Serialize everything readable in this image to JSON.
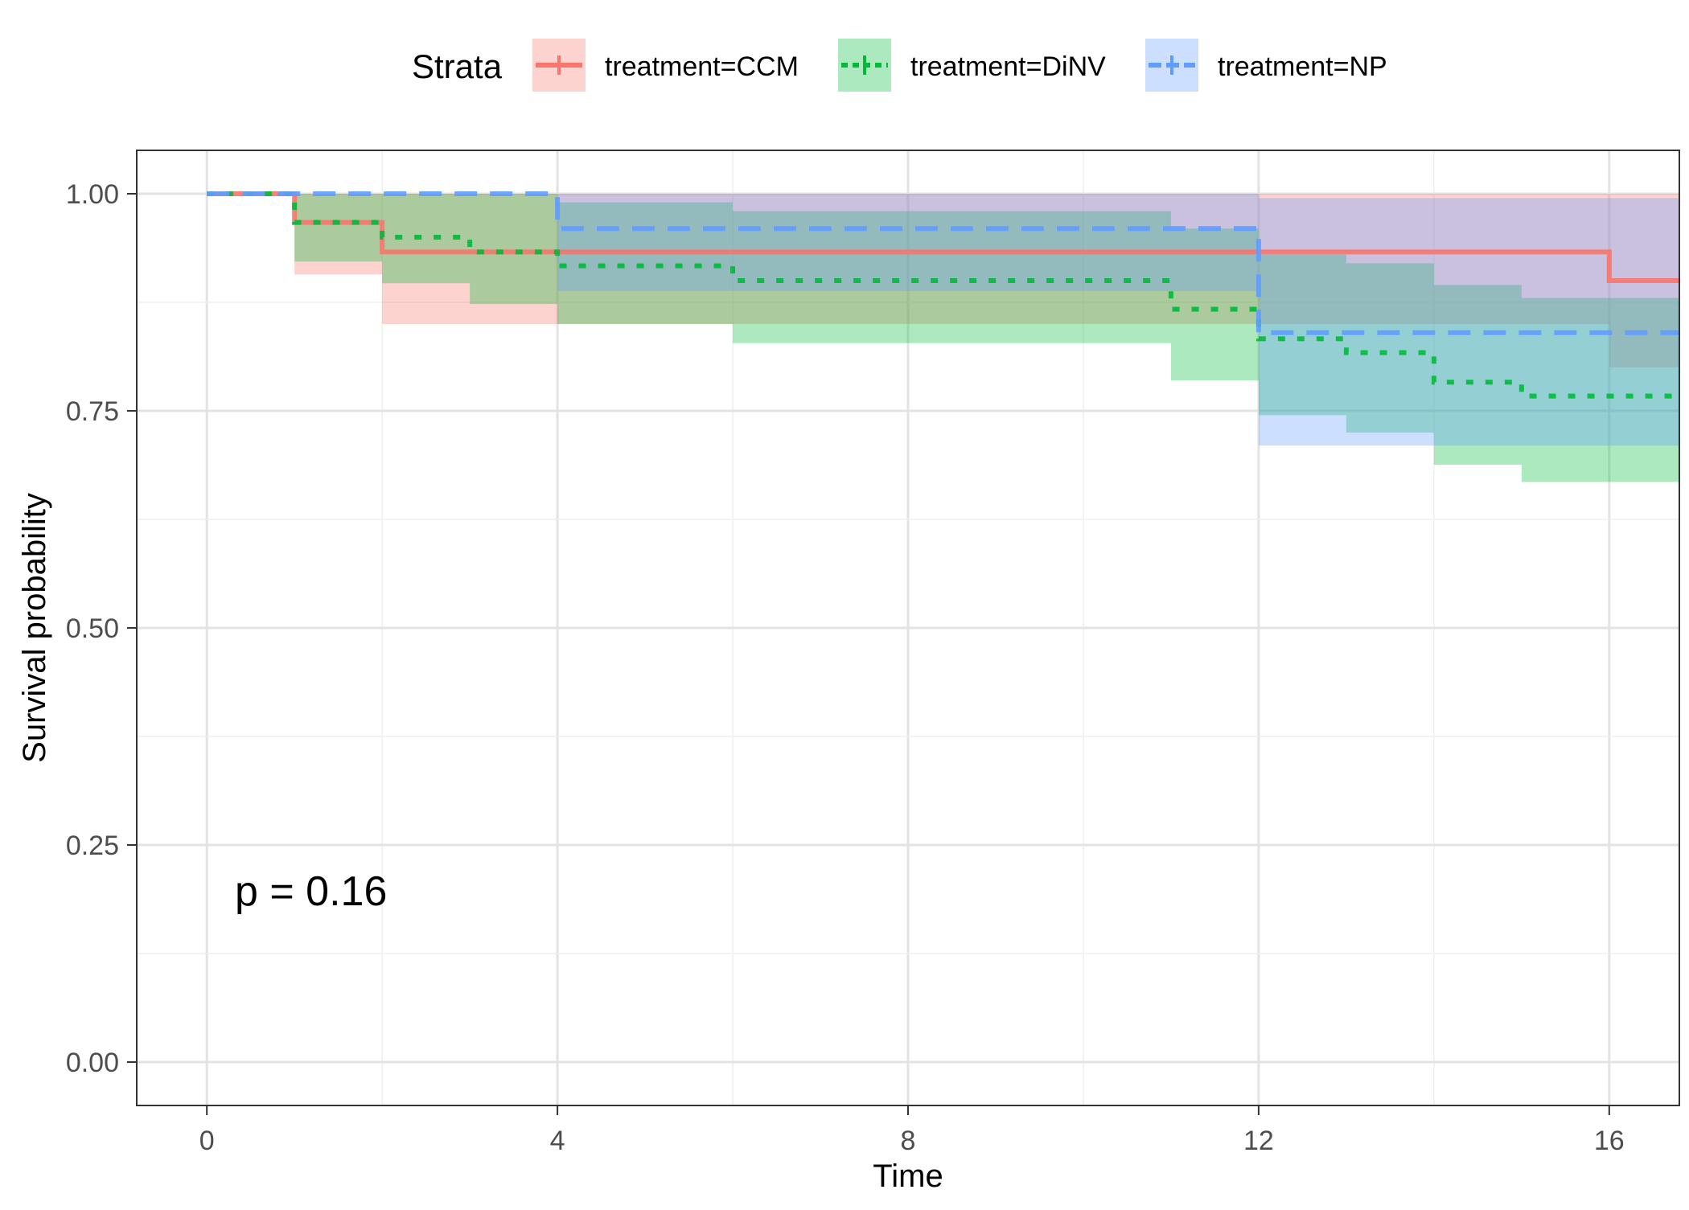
{
  "chart_data": {
    "type": "line",
    "subtype": "kaplan-meier step survival curves with confidence bands",
    "xlabel": "Time",
    "ylabel": "Survival probability",
    "xlim": [
      -0.8,
      16.8
    ],
    "ylim": [
      -0.05,
      1.05
    ],
    "x_ticks": [
      0,
      4,
      8,
      12,
      16
    ],
    "x_tick_labels": [
      "0",
      "4",
      "8",
      "12",
      "16"
    ],
    "y_ticks": [
      0.0,
      0.25,
      0.5,
      0.75,
      1.0
    ],
    "y_tick_labels": [
      "0.00",
      "0.25",
      "0.50",
      "0.75",
      "1.00"
    ],
    "grid": true,
    "legend": {
      "title": "Strata",
      "position": "top",
      "labels": [
        "treatment=CCM",
        "treatment=DiNV",
        "treatment=NP"
      ]
    },
    "annotation": "p = 0.16",
    "series": [
      {
        "name": "treatment=CCM",
        "color": "#F8766D",
        "line_style": "solid",
        "x": [
          0,
          1,
          2,
          16,
          16.8
        ],
        "y": [
          1.0,
          0.967,
          0.933,
          0.9,
          0.9
        ],
        "band_x": [
          0,
          1,
          2,
          3,
          4,
          16,
          16.8
        ],
        "band_lower": [
          1.0,
          0.907,
          0.85,
          0.85,
          0.85,
          0.8,
          0.8
        ],
        "band_upper": [
          1.0,
          1.0,
          1.0,
          1.0,
          1.0,
          1.0,
          1.0
        ]
      },
      {
        "name": "treatment=DiNV",
        "color": "#00BA38",
        "line_style": "dotted",
        "x": [
          0,
          1,
          2,
          3,
          4,
          6,
          11,
          12,
          13,
          14,
          15,
          16.8
        ],
        "y": [
          1.0,
          0.967,
          0.95,
          0.933,
          0.917,
          0.9,
          0.867,
          0.833,
          0.817,
          0.783,
          0.767,
          0.767
        ],
        "band_x": [
          0,
          1,
          2,
          3,
          4,
          6,
          11,
          12,
          13,
          14,
          15,
          16.8
        ],
        "band_lower": [
          1.0,
          0.922,
          0.897,
          0.873,
          0.85,
          0.828,
          0.785,
          0.745,
          0.725,
          0.688,
          0.668,
          0.668
        ],
        "band_upper": [
          1.0,
          1.0,
          1.0,
          1.0,
          0.99,
          0.98,
          0.96,
          0.93,
          0.92,
          0.895,
          0.88,
          0.88
        ]
      },
      {
        "name": "treatment=NP",
        "color": "#619CFF",
        "line_style": "dashed",
        "x": [
          0,
          4,
          12,
          16.8
        ],
        "y": [
          1.0,
          0.96,
          0.84,
          0.84
        ],
        "band_x": [
          0,
          4,
          12,
          16.8
        ],
        "band_lower": [
          1.0,
          0.888,
          0.71,
          0.71
        ],
        "band_upper": [
          1.0,
          1.0,
          0.995,
          0.995
        ]
      }
    ]
  }
}
